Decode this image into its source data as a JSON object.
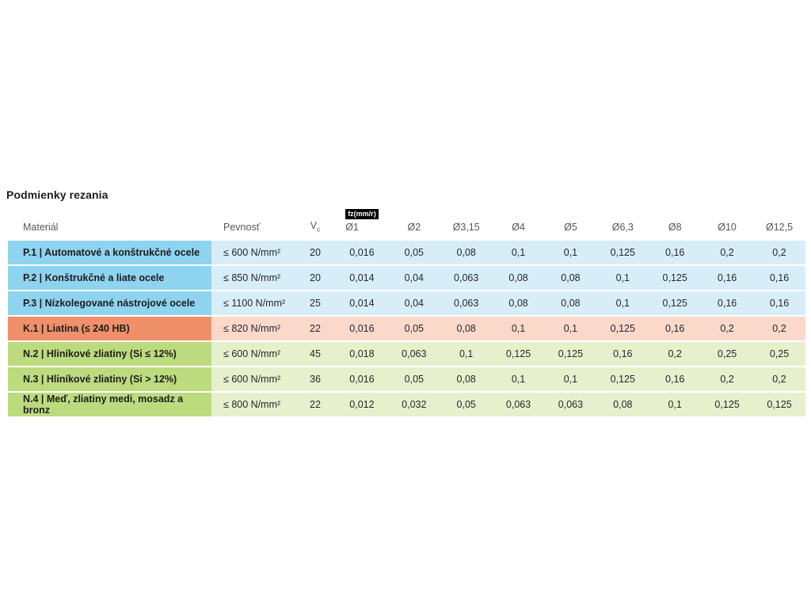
{
  "page": {
    "title": "Podmienky rezania"
  },
  "table": {
    "header": {
      "material": "Materiál",
      "strength": "Pevnosť",
      "vc_base": "V",
      "vc_sub": "c",
      "unit_badge": "fz(mm/r)",
      "diameters": [
        "Ø1",
        "Ø2",
        "Ø3,15",
        "Ø4",
        "Ø5",
        "Ø6,3",
        "Ø8",
        "Ø10",
        "Ø12,5"
      ]
    },
    "colors": {
      "P": {
        "solid": "#8ed3ef",
        "light": "#d7eef9"
      },
      "K": {
        "solid": "#f0906b",
        "light": "#fad9ca"
      },
      "N": {
        "solid": "#bcdb7f",
        "light": "#e7f0cd"
      }
    },
    "rows": [
      {
        "group": "P",
        "material": "P.1 | Automatové a konštrukčné ocele",
        "strength": "≤ 600 N/mm²",
        "vc": "20",
        "values": [
          "0,016",
          "0,05",
          "0,08",
          "0,1",
          "0,1",
          "0,125",
          "0,16",
          "0,2",
          "0,2"
        ]
      },
      {
        "group": "P",
        "material": "P.2 | Konštrukčné a liate ocele",
        "strength": "≤ 850 N/mm²",
        "vc": "20",
        "values": [
          "0,014",
          "0,04",
          "0,063",
          "0,08",
          "0,08",
          "0,1",
          "0,125",
          "0,16",
          "0,16"
        ]
      },
      {
        "group": "P",
        "material": "P.3 | Nízkolegované nástrojové ocele",
        "strength": "≤ 1100 N/mm²",
        "vc": "25",
        "values": [
          "0,014",
          "0,04",
          "0,063",
          "0,08",
          "0,08",
          "0,1",
          "0,125",
          "0,16",
          "0,16"
        ]
      },
      {
        "group": "K",
        "material": "K.1 | Liatina (≤ 240 HB)",
        "strength": "≤ 820 N/mm²",
        "vc": "22",
        "values": [
          "0,016",
          "0,05",
          "0,08",
          "0,1",
          "0,1",
          "0,125",
          "0,16",
          "0,2",
          "0,2"
        ]
      },
      {
        "group": "N",
        "material": "N.2 | Hliníkové zliatiny (Si ≤ 12%)",
        "strength": "≤ 600 N/mm²",
        "vc": "45",
        "values": [
          "0,018",
          "0,063",
          "0,1",
          "0,125",
          "0,125",
          "0,16",
          "0,2",
          "0,25",
          "0,25"
        ]
      },
      {
        "group": "N",
        "material": "N.3 | Hliníkové zliatiny (Si > 12%)",
        "strength": "≤ 600 N/mm²",
        "vc": "36",
        "values": [
          "0,016",
          "0,05",
          "0,08",
          "0,1",
          "0,1",
          "0,125",
          "0,16",
          "0,2",
          "0,2"
        ]
      },
      {
        "group": "N",
        "material": "N.4 | Meď, zliatiny medi, mosadz a bronz",
        "strength": "≤ 800 N/mm²",
        "vc": "22",
        "values": [
          "0,012",
          "0,032",
          "0,05",
          "0,063",
          "0,063",
          "0,08",
          "0,1",
          "0,125",
          "0,125"
        ]
      }
    ]
  },
  "chart_data": {
    "type": "table",
    "title": "Podmienky rezania",
    "unit_label": "fz(mm/r)",
    "columns": [
      "Materiál",
      "Pevnosť",
      "Vc",
      "Ø1",
      "Ø2",
      "Ø3,15",
      "Ø4",
      "Ø5",
      "Ø6,3",
      "Ø8",
      "Ø10",
      "Ø12,5"
    ],
    "rows": [
      [
        "P.1 | Automatové a konštrukčné ocele",
        "≤ 600 N/mm²",
        20,
        0.016,
        0.05,
        0.08,
        0.1,
        0.1,
        0.125,
        0.16,
        0.2,
        0.2
      ],
      [
        "P.2 | Konštrukčné a liate ocele",
        "≤ 850 N/mm²",
        20,
        0.014,
        0.04,
        0.063,
        0.08,
        0.08,
        0.1,
        0.125,
        0.16,
        0.16
      ],
      [
        "P.3 | Nízkolegované nástrojové ocele",
        "≤ 1100 N/mm²",
        25,
        0.014,
        0.04,
        0.063,
        0.08,
        0.08,
        0.1,
        0.125,
        0.16,
        0.16
      ],
      [
        "K.1 | Liatina (≤ 240 HB)",
        "≤ 820 N/mm²",
        22,
        0.016,
        0.05,
        0.08,
        0.1,
        0.1,
        0.125,
        0.16,
        0.2,
        0.2
      ],
      [
        "N.2 | Hliníkové zliatiny (Si ≤ 12%)",
        "≤ 600 N/mm²",
        45,
        0.018,
        0.063,
        0.1,
        0.125,
        0.125,
        0.16,
        0.2,
        0.25,
        0.25
      ],
      [
        "N.3 | Hliníkové zliatiny (Si > 12%)",
        "≤ 600 N/mm²",
        36,
        0.016,
        0.05,
        0.08,
        0.1,
        0.1,
        0.125,
        0.16,
        0.2,
        0.2
      ],
      [
        "N.4 | Meď, zliatiny medi, mosadz a bronz",
        "≤ 800 N/mm²",
        22,
        0.012,
        0.032,
        0.05,
        0.063,
        0.063,
        0.08,
        0.1,
        0.125,
        0.125
      ]
    ],
    "row_group_colors": {
      "P": "#8ed3ef",
      "K": "#f0906b",
      "N": "#bcdb7f"
    }
  }
}
